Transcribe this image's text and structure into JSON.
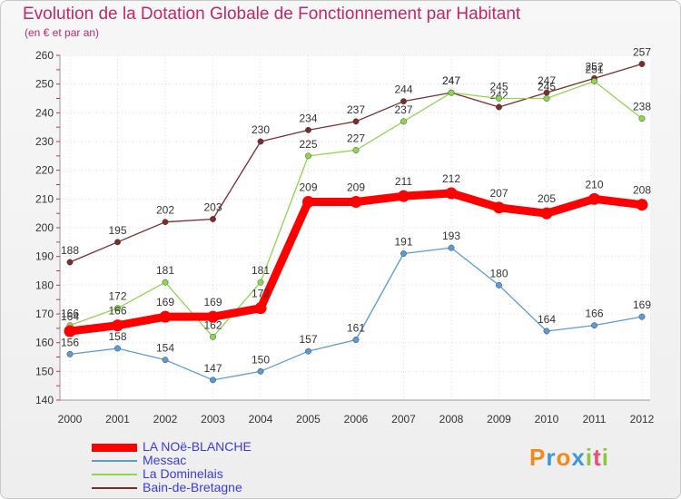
{
  "header": {
    "title": "Evolution de la Dotation Globale de Fonctionnement par Habitant",
    "subtitle": "(en € et par an)"
  },
  "logo": {
    "text": "Proxiti",
    "colors": [
      "#f08a1c",
      "#3a9ad9",
      "#f08a1c",
      "#3a9ad9",
      "#8cc63f",
      "#e94e77",
      "#8cc63f"
    ]
  },
  "chart_data": {
    "type": "line",
    "title": "Evolution de la Dotation Globale de Fonctionnement par Habitant",
    "ylabel": "(en € et par an)",
    "xlabel": "",
    "x": [
      "2000",
      "2001",
      "2002",
      "2003",
      "2004",
      "2005",
      "2006",
      "2007",
      "2008",
      "2009",
      "2010",
      "2011",
      "2012"
    ],
    "ylim": [
      140,
      260
    ],
    "yticks": [
      140,
      150,
      160,
      170,
      180,
      190,
      200,
      210,
      220,
      230,
      240,
      250,
      260
    ],
    "grid": true,
    "legend_position": "bottom-left",
    "series": [
      {
        "name": "LA NOë-BLANCHE",
        "color": "#ff0000",
        "values": [
          164,
          166,
          169,
          169,
          172,
          209,
          209,
          211,
          212,
          207,
          205,
          210,
          208
        ]
      },
      {
        "name": "Messac",
        "color": "#5b9bd5",
        "values": [
          156,
          158,
          154,
          147,
          150,
          157,
          161,
          191,
          193,
          180,
          164,
          166,
          169
        ]
      },
      {
        "name": "La Dominelais",
        "color": "#8fd64f",
        "values": [
          166,
          172,
          181,
          162,
          181,
          225,
          227,
          237,
          247,
          245,
          245,
          251,
          238
        ]
      },
      {
        "name": "Bain-de-Bretagne",
        "color": "#7b2d2d",
        "values": [
          188,
          195,
          202,
          203,
          230,
          234,
          237,
          244,
          247,
          242,
          247,
          252,
          257
        ]
      }
    ]
  }
}
